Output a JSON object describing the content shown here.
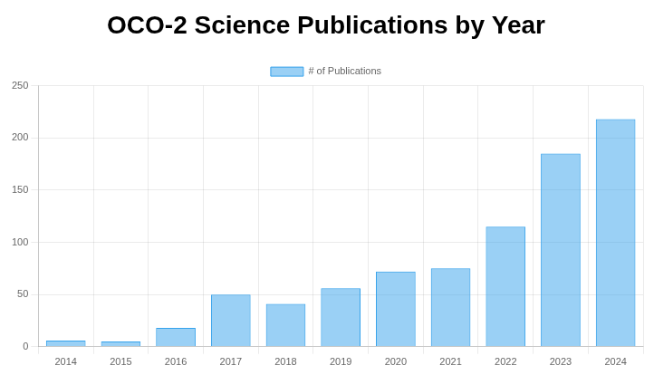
{
  "chart_data": {
    "type": "bar",
    "title": "OCO-2 Science Publications by Year",
    "categories": [
      "2014",
      "2015",
      "2016",
      "2017",
      "2018",
      "2019",
      "2020",
      "2021",
      "2022",
      "2023",
      "2024"
    ],
    "series": [
      {
        "name": "# of Publications",
        "color": "#36a2eb",
        "values": [
          6,
          5,
          18,
          50,
          41,
          56,
          72,
          75,
          115,
          185,
          218
        ]
      }
    ],
    "ylim": [
      0,
      250
    ],
    "yticks": [
      0,
      50,
      100,
      150,
      200,
      250
    ],
    "grid": true,
    "legend": "top"
  }
}
